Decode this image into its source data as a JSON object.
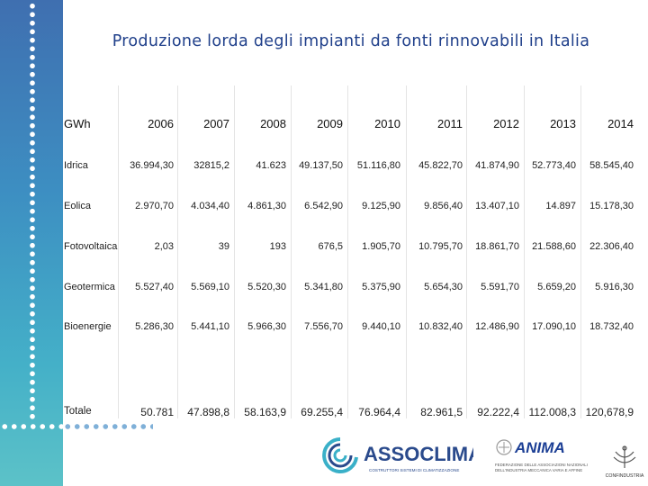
{
  "title": "Produzione lorda degli impianti da fonti rinnovabili in Italia",
  "table": {
    "unit_label": "GWh",
    "years": [
      "2006",
      "2007",
      "2008",
      "2009",
      "2010",
      "2011",
      "2012",
      "2013",
      "2014"
    ],
    "rows": [
      {
        "label": "Idrica",
        "values": [
          "36.994,30",
          "32815,2",
          "41.623",
          "49.137,50",
          "51.116,80",
          "45.822,70",
          "41.874,90",
          "52.773,40",
          "58.545,40"
        ]
      },
      {
        "label": "Eolica",
        "values": [
          "2.970,70",
          "4.034,40",
          "4.861,30",
          "6.542,90",
          "9.125,90",
          "9.856,40",
          "13.407,10",
          "14.897",
          "15.178,30"
        ]
      },
      {
        "label": "Fotovoltaica",
        "values": [
          "2,03",
          "39",
          "193",
          "676,5",
          "1.905,70",
          "10.795,70",
          "18.861,70",
          "21.588,60",
          "22.306,40"
        ]
      },
      {
        "label": "Geotermica",
        "values": [
          "5.527,40",
          "5.569,10",
          "5.520,30",
          "5.341,80",
          "5.375,90",
          "5.654,30",
          "5.591,70",
          "5.659,20",
          "5.916,30"
        ]
      },
      {
        "label": "Bioenergie",
        "values": [
          "5.286,30",
          "5.441,10",
          "5.966,30",
          "7.556,70",
          "9.440,10",
          "10.832,40",
          "12.486,90",
          "17.090,10",
          "18.732,40"
        ]
      },
      {
        "label": "Totale",
        "values": [
          "50.781",
          "47.898,8",
          "58.163,9",
          "69.255,4",
          "76.964,4",
          "82.961,5",
          "92.222,4",
          "112.008,3",
          "120,678,9"
        ]
      }
    ]
  },
  "logos": {
    "assoclima_name": "ASSOCLIMA",
    "assoclima_tagline": "COSTRUTTORI SISTEMI DI CLIMATIZZAZIONE",
    "anima_name": "ANIMA",
    "anima_tagline_1": "FEDERAZIONE DELLE ASSOCIAZIONI NAZIONALI",
    "anima_tagline_2": "DELL'INDUSTRIA MECCANICA VARIA E AFFINE",
    "confindustria_name": "CONFINDUSTRIA"
  },
  "colors": {
    "title": "#1f3f8a",
    "sidebar_top": "#3f6fb0",
    "sidebar_bottom": "#5cc2c8",
    "assoclima_blue": "#2a4a8c",
    "assoclima_teal": "#3ab0c8",
    "anima_blue": "#1c3f95"
  }
}
